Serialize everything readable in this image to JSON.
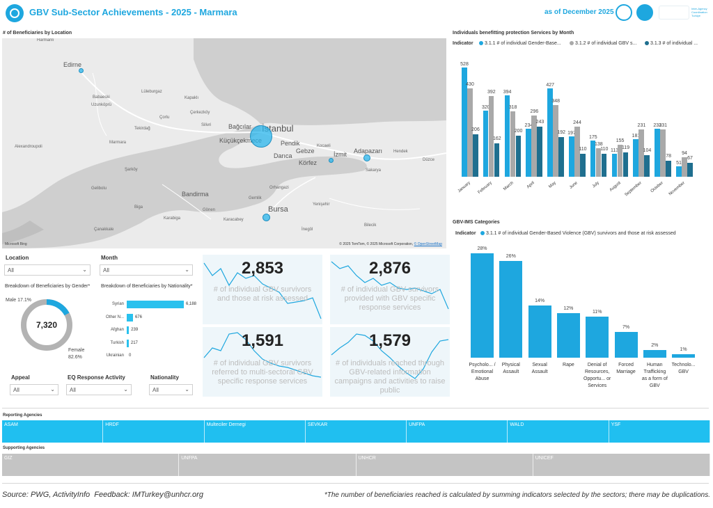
{
  "header": {
    "title": "GBV Sub-Sector Achievements - 2025 - Marmara",
    "as_of": "as of December 2025",
    "iasc_text": "Inter-Agency Coordination Turkiye"
  },
  "map": {
    "title": "# of Beneficiaries by Location",
    "copyright": "© 2025 TomTom, © 2025 Microsoft Corporation, ",
    "osm": "© OpenStreetMap",
    "bing": "Microsoft Bing",
    "labels": [
      "Harmanli",
      "Edirne",
      "Babaeski",
      "Uzunköprü",
      "Lüleburgaz",
      "Kapaklı",
      "Çorlu",
      "Tekirdağ",
      "Silivri",
      "Çerkezköy",
      "Marmara",
      "Alexandroupoli",
      "Şarköy",
      "Gelibolu",
      "Bandirma",
      "Biga",
      "Çanakkale",
      "Karabiga",
      "Gönen",
      "Kocaeli",
      "Adapazarı",
      "Sakarya",
      "Hendek",
      "Düzce",
      "Yenişehir",
      "İnegöl",
      "Gemlik",
      "Orhangazi",
      "Karacabey",
      "Bilecik",
      "Tekirdağ"
    ],
    "cities": [
      "Bağcılar",
      "İstanbul",
      "Küçükçekmece",
      "Pendik",
      "Gebze",
      "Darıca",
      "Körfez",
      "İzmit",
      "Bursa"
    ]
  },
  "filters": {
    "location_label": "Location",
    "location_value": "All",
    "month_label": "Month",
    "month_value": "All",
    "appeal_label": "Appeal",
    "appeal_value": "All",
    "eq_label": "EQ Response Activity",
    "eq_value": "All",
    "nationality_label": "Nationality",
    "nationality_value": "All"
  },
  "gender": {
    "title": "Breakdown of Beneficiaries by Gender*",
    "total": "7,320",
    "male_label": "Male 17.1%",
    "female_label": "Female",
    "female_pct": "82.6%",
    "male_share": 0.171
  },
  "nationality": {
    "title": "Breakdown of Beneficiaries by Nationality*",
    "categories": [
      "Syrian",
      "Other N...",
      "Afghan",
      "Turkish",
      "Ukrainian"
    ],
    "values": [
      6188,
      676,
      239,
      217,
      0
    ],
    "value_labels": [
      "6,188",
      "676",
      "239",
      "217",
      "0"
    ]
  },
  "kpis": [
    {
      "value": "2,853",
      "label": "# of individual GBV survivors and those at risk assessed"
    },
    {
      "value": "2,876",
      "label": "# of individual GBV survivors provided with GBV specific response services"
    },
    {
      "value": "1,591",
      "label": "# of individual GBV survivors referred to multi-sectoral GBV specific response services"
    },
    {
      "value": "1,579",
      "label": "# of individuals reached through GBV-related information campaigns and activities to raise public"
    }
  ],
  "monthly": {
    "title": "Individuals benefitting protection Services by Month",
    "indicator_label": "Indicator",
    "legend": [
      {
        "name": "3.1.1 # of individual Gender-Base...",
        "color": "#1ea7df"
      },
      {
        "name": "3.1.2 # of individual GBV s...",
        "color": "#a9a9a9"
      },
      {
        "name": "3.1.3 # of individual ...",
        "color": "#1f6f8f"
      }
    ]
  },
  "chart_data": [
    {
      "type": "bar",
      "title": "Individuals benefitting protection Services by Month",
      "categories": [
        "January",
        "February",
        "March",
        "April",
        "May",
        "June",
        "July",
        "August",
        "September",
        "October",
        "November"
      ],
      "series": [
        {
          "name": "3.1.1 # of individual Gender-Base...",
          "values": [
            528,
            320,
            394,
            234,
            427,
            197,
            175,
            113,
            181,
            233,
            51
          ]
        },
        {
          "name": "3.1.2 # of individual GBV s...",
          "values": [
            430,
            392,
            318,
            296,
            348,
            244,
            138,
            155,
            231,
            231,
            94
          ]
        },
        {
          "name": "3.1.3 # of individual ...",
          "values": [
            206,
            162,
            200,
            243,
            192,
            110,
            110,
            119,
            104,
            78,
            67
          ]
        }
      ],
      "ylim": [
        0,
        560
      ],
      "colors": [
        "#1ea7df",
        "#a9a9a9",
        "#1f6f8f"
      ]
    },
    {
      "type": "bar",
      "title": "GBV-IMS Categories",
      "indicator_label": "Indicator",
      "series_name": "3.1.1 # of individual Gender-Based Violence (GBV) survivors and those at risk assessed",
      "categories": [
        "Psycholo... / Emotional Abuse",
        "Physical Assault",
        "Sexual Assault",
        "Rape",
        "Denial of Resources, Opportu... or Services",
        "Forced Marriage",
        "Human Trafficking as a form of GBV",
        "Technolo... GBV"
      ],
      "values": [
        28,
        26,
        14,
        12,
        11,
        7,
        2,
        1
      ],
      "value_labels": [
        "28%",
        "26%",
        "14%",
        "12%",
        "11%",
        "7%",
        "2%",
        "1%"
      ],
      "color": "#1ea7df"
    }
  ],
  "agencies": {
    "reporting_title": "Reporting Agencies",
    "reporting": [
      "ASAM",
      "HRDF",
      "Multeciler Dernegi",
      "SEVKAR",
      "UNFPA",
      "WALD",
      "YSF"
    ],
    "supporting_title": "Supporting Agencies",
    "supporting": [
      "GIZ",
      "UNFPA",
      "UNHCR",
      "UNICEF"
    ]
  },
  "footer": {
    "source_label": "Source",
    "source_value": ": PWG, ActivityInfo",
    "feedback_label": "Feedback",
    "feedback_value": ": IMTurkey@unhcr.org",
    "note": "*The number of beneficiaries reached is calculated by summing indicators selected by the sectors; there may be duplications."
  }
}
